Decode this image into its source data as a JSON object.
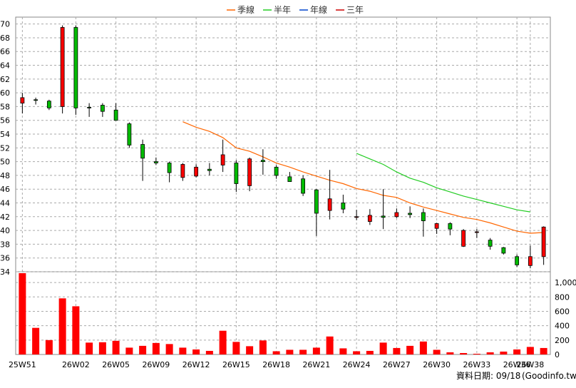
{
  "legend": [
    {
      "label": "季線",
      "color": "#ff6600"
    },
    {
      "label": "半年",
      "color": "#22cc22"
    },
    {
      "label": "年線",
      "color": "#0044cc"
    },
    {
      "label": "三年",
      "color": "#cc0000"
    }
  ],
  "footer": {
    "date_text": "資料日期: 09/18",
    "source_text": "(Goodinfo.tw)"
  },
  "chart_data": {
    "type": "candlestick",
    "ylim": [
      34,
      71
    ],
    "yticks": [
      34,
      36,
      38,
      40,
      42,
      44,
      46,
      48,
      50,
      52,
      54,
      56,
      58,
      60,
      62,
      64,
      66,
      68,
      70
    ],
    "volume_ylim": [
      0,
      1150
    ],
    "volume_ticks": [
      0,
      200,
      400,
      600,
      800,
      1000
    ],
    "volume_tick_labels": [
      "0",
      "200",
      "400",
      "600",
      "800",
      "1,000"
    ],
    "x_tick_labels": [
      {
        "i": 0,
        "label": "25W51"
      },
      {
        "i": 4,
        "label": "26W02"
      },
      {
        "i": 7,
        "label": "26W05"
      },
      {
        "i": 10,
        "label": "26W09"
      },
      {
        "i": 13,
        "label": "26W12"
      },
      {
        "i": 16,
        "label": "26W15"
      },
      {
        "i": 19,
        "label": "26W18"
      },
      {
        "i": 22,
        "label": "26W21"
      },
      {
        "i": 25,
        "label": "26W24"
      },
      {
        "i": 28,
        "label": "26W27"
      },
      {
        "i": 31,
        "label": "26W30"
      },
      {
        "i": 34,
        "label": "26W33"
      },
      {
        "i": 37,
        "label": "26W36"
      },
      {
        "i": 38,
        "label": "26W38"
      }
    ],
    "candles": [
      {
        "o": 58.5,
        "h": 60.0,
        "l": 57.0,
        "c": 59.3,
        "v": 1130
      },
      {
        "o": 59.0,
        "h": 59.3,
        "l": 58.3,
        "c": 58.9,
        "v": 370
      },
      {
        "o": 58.8,
        "h": 59.0,
        "l": 57.5,
        "c": 57.8,
        "v": 200
      },
      {
        "o": 58.0,
        "h": 69.8,
        "l": 57.0,
        "c": 69.5,
        "v": 780
      },
      {
        "o": 69.5,
        "h": 69.8,
        "l": 56.8,
        "c": 57.8,
        "v": 670
      },
      {
        "o": 57.9,
        "h": 58.5,
        "l": 56.5,
        "c": 57.8,
        "v": 165
      },
      {
        "o": 58.2,
        "h": 58.5,
        "l": 56.5,
        "c": 57.3,
        "v": 170
      },
      {
        "o": 57.5,
        "h": 58.5,
        "l": 56.0,
        "c": 56.0,
        "v": 190
      },
      {
        "o": 55.5,
        "h": 55.7,
        "l": 52.0,
        "c": 52.4,
        "v": 95
      },
      {
        "o": 52.5,
        "h": 53.2,
        "l": 47.2,
        "c": 50.5,
        "v": 120
      },
      {
        "o": 50.0,
        "h": 50.6,
        "l": 49.5,
        "c": 49.8,
        "v": 160
      },
      {
        "o": 49.8,
        "h": 50.0,
        "l": 47.0,
        "c": 48.4,
        "v": 145
      },
      {
        "o": 47.7,
        "h": 49.8,
        "l": 47.2,
        "c": 49.6,
        "v": 95
      },
      {
        "o": 47.9,
        "h": 49.6,
        "l": 47.7,
        "c": 49.2,
        "v": 70
      },
      {
        "o": 48.9,
        "h": 49.8,
        "l": 48.0,
        "c": 48.7,
        "v": 50
      },
      {
        "o": 49.5,
        "h": 53.2,
        "l": 48.5,
        "c": 51.0,
        "v": 330
      },
      {
        "o": 49.8,
        "h": 50.2,
        "l": 45.6,
        "c": 46.8,
        "v": 175
      },
      {
        "o": 46.5,
        "h": 50.6,
        "l": 45.7,
        "c": 50.4,
        "v": 115
      },
      {
        "o": 50.2,
        "h": 51.8,
        "l": 48.1,
        "c": 50.0,
        "v": 195
      },
      {
        "o": 49.2,
        "h": 49.5,
        "l": 47.5,
        "c": 48.0,
        "v": 45
      },
      {
        "o": 47.8,
        "h": 48.5,
        "l": 47.2,
        "c": 47.1,
        "v": 65
      },
      {
        "o": 47.5,
        "h": 48.0,
        "l": 45.0,
        "c": 45.4,
        "v": 65
      },
      {
        "o": 45.9,
        "h": 46.0,
        "l": 39.2,
        "c": 42.5,
        "v": 95
      },
      {
        "o": 42.9,
        "h": 48.8,
        "l": 41.6,
        "c": 44.6,
        "v": 250
      },
      {
        "o": 44.0,
        "h": 45.2,
        "l": 42.5,
        "c": 43.1,
        "v": 85
      },
      {
        "o": 42.0,
        "h": 43.0,
        "l": 41.5,
        "c": 42.0,
        "v": 45
      },
      {
        "o": 41.3,
        "h": 43.1,
        "l": 40.8,
        "c": 42.2,
        "v": 50
      },
      {
        "o": 42.1,
        "h": 46.0,
        "l": 40.2,
        "c": 41.9,
        "v": 165
      },
      {
        "o": 42.0,
        "h": 43.2,
        "l": 41.8,
        "c": 42.6,
        "v": 90
      },
      {
        "o": 42.5,
        "h": 43.5,
        "l": 41.8,
        "c": 42.3,
        "v": 120
      },
      {
        "o": 42.6,
        "h": 43.2,
        "l": 39.1,
        "c": 41.4,
        "v": 180
      },
      {
        "o": 40.3,
        "h": 41.1,
        "l": 39.5,
        "c": 41.0,
        "v": 65
      },
      {
        "o": 41.0,
        "h": 41.2,
        "l": 39.3,
        "c": 40.2,
        "v": 30
      },
      {
        "o": 37.7,
        "h": 40.2,
        "l": 37.6,
        "c": 40.0,
        "v": 20
      },
      {
        "o": 39.8,
        "h": 40.2,
        "l": 38.9,
        "c": 39.8,
        "v": 10
      },
      {
        "o": 38.6,
        "h": 38.9,
        "l": 37.2,
        "c": 37.7,
        "v": 30
      },
      {
        "o": 37.5,
        "h": 37.6,
        "l": 36.5,
        "c": 36.7,
        "v": 40
      },
      {
        "o": 36.2,
        "h": 36.5,
        "l": 34.7,
        "c": 35.0,
        "v": 70
      },
      {
        "o": 34.9,
        "h": 37.8,
        "l": 34.5,
        "c": 36.2,
        "v": 105
      },
      {
        "o": 36.2,
        "h": 40.6,
        "l": 35.0,
        "c": 40.5,
        "v": 90
      }
    ],
    "series": [
      {
        "name": "季線",
        "color": "#ff6600",
        "start_index": 12,
        "values": [
          55.8,
          55.0,
          54.4,
          53.5,
          52.0,
          51.5,
          50.7,
          49.8,
          49.2,
          48.5,
          47.9,
          47.3,
          46.8,
          46.1,
          45.7,
          45.1,
          44.8,
          44.0,
          43.4,
          42.9,
          42.4,
          41.9,
          41.6,
          41.1,
          40.5,
          39.9,
          39.6,
          39.7
        ]
      },
      {
        "name": "半年",
        "color": "#22cc22",
        "start_index": 25,
        "values": [
          51.2,
          50.4,
          49.6,
          48.5,
          47.6,
          47.0,
          46.2,
          45.6,
          45.0,
          44.5,
          44.0,
          43.5,
          43.0,
          42.7
        ]
      }
    ]
  }
}
